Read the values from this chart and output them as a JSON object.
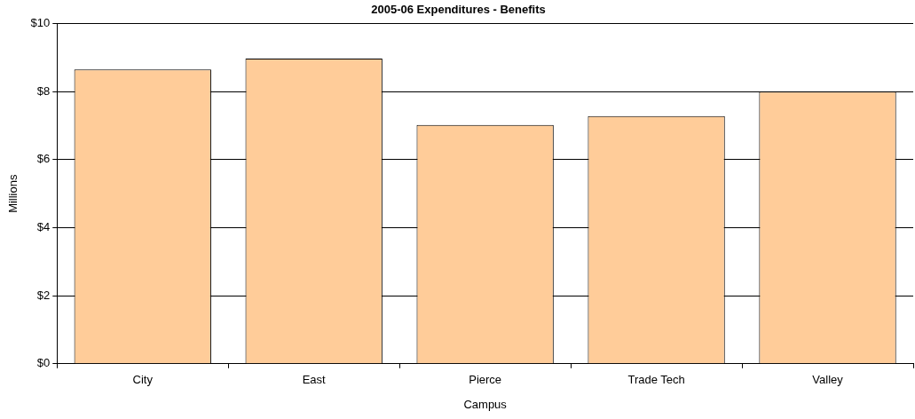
{
  "chart_data": {
    "type": "bar",
    "title": "2005-06 Expenditures - Benefits",
    "xlabel": "Campus",
    "ylabel": "Millions",
    "categories": [
      "City",
      "East",
      "Pierce",
      "Trade Tech",
      "Valley"
    ],
    "values": [
      8.65,
      8.97,
      7.02,
      7.28,
      8.0
    ],
    "color": "#ffcc99",
    "ylim": [
      0,
      10
    ],
    "yticks": [
      {
        "value": 0,
        "label": "$0"
      },
      {
        "value": 2,
        "label": "$2"
      },
      {
        "value": 4,
        "label": "$4"
      },
      {
        "value": 6,
        "label": "$6"
      },
      {
        "value": 8,
        "label": "$8"
      },
      {
        "value": 10,
        "label": "$10"
      }
    ],
    "grid": "y",
    "legend": false
  }
}
